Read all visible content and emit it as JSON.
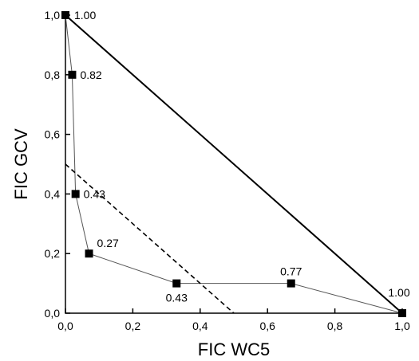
{
  "chart_data": {
    "type": "line",
    "title": "",
    "xlabel": "FIC WC5",
    "ylabel": "FIC GCV",
    "xlim": [
      0,
      1
    ],
    "ylim": [
      0,
      1
    ],
    "xticks": [
      "0,0",
      "0,2",
      "0,4",
      "0,6",
      "0,8",
      "1,0"
    ],
    "yticks": [
      "0,0",
      "0,2",
      "0,4",
      "0,6",
      "0,8",
      "1,0"
    ],
    "grid": false,
    "legend": "none",
    "series": [
      {
        "style": "thin-solid-square-markers",
        "points": [
          {
            "x": 0.0,
            "y": 1.0,
            "label": "1.00"
          },
          {
            "x": 0.02,
            "y": 0.8,
            "label": "0.82"
          },
          {
            "x": 0.03,
            "y": 0.4,
            "label": "0.43"
          },
          {
            "x": 0.07,
            "y": 0.2,
            "label": "0.27"
          },
          {
            "x": 0.33,
            "y": 0.1,
            "label": "0.43"
          },
          {
            "x": 0.67,
            "y": 0.1,
            "label": "0.77"
          },
          {
            "x": 1.0,
            "y": 0.0,
            "label": "1.00"
          }
        ]
      },
      {
        "style": "thick-solid",
        "points": [
          {
            "x": 0.0,
            "y": 1.0
          },
          {
            "x": 1.0,
            "y": 0.0
          }
        ]
      },
      {
        "style": "dashed",
        "points": [
          {
            "x": 0.0,
            "y": 0.5
          },
          {
            "x": 0.5,
            "y": 0.0
          }
        ]
      }
    ],
    "colors": {
      "line": "#000000",
      "marker": "#000000"
    }
  }
}
